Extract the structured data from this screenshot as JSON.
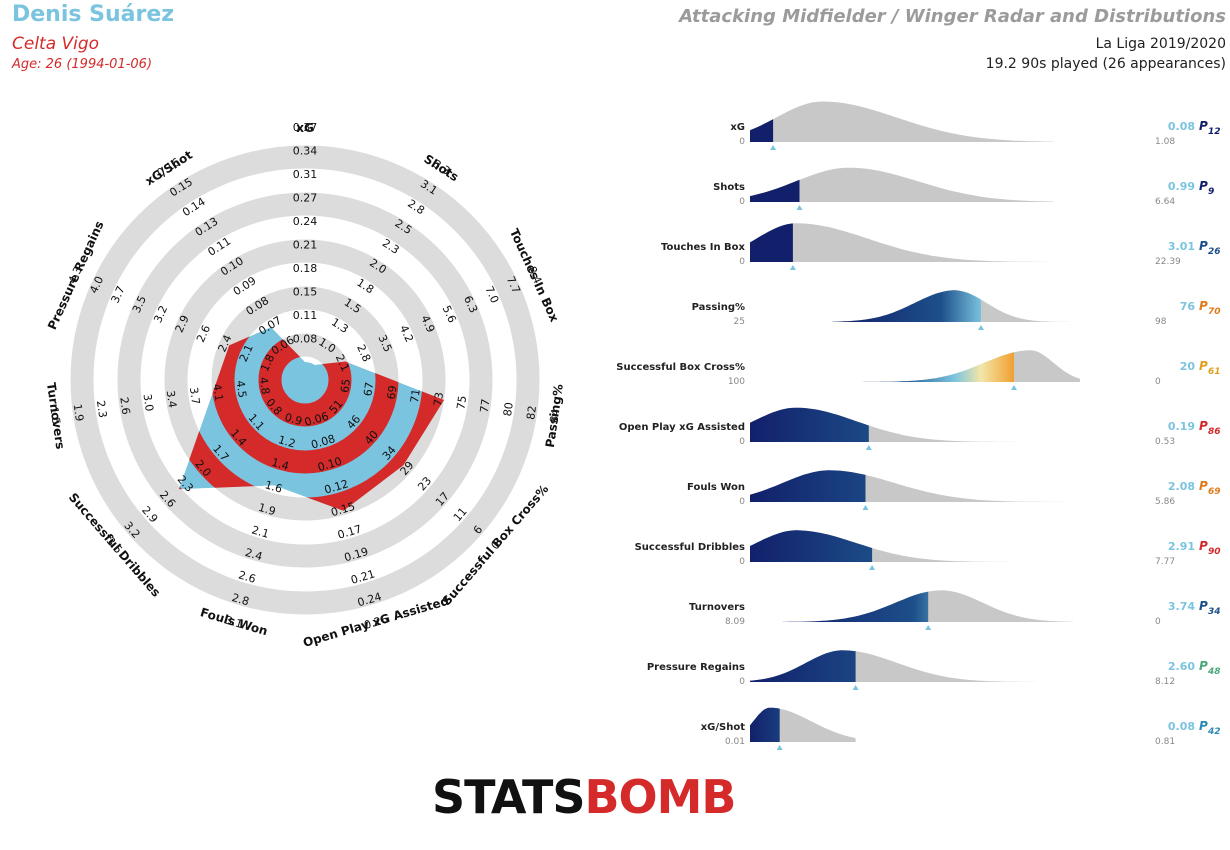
{
  "header": {
    "player_name": "Denis Suárez",
    "team": "Celta Vigo",
    "age": "Age: 26 (1994-01-06)",
    "title": "Attacking Midfielder / Winger Radar and Distributions",
    "competition": "La Liga 2019/2020",
    "minutes": "19.2 90s played (26 appearances)"
  },
  "logo": {
    "stats": "STATS",
    "bomb": "BOMB"
  },
  "colors": {
    "ring": "#dcdcdc",
    "blue": "#7bc4df",
    "red": "#d42a2a",
    "navy": "#12206b",
    "grey": "#c8c8c8",
    "tri": "#7bc4df"
  },
  "chart_data": [
    {
      "type": "radar",
      "axes": [
        {
          "label": "xG",
          "ticks": [
            "0.08",
            "0.11",
            "0.15",
            "0.18",
            "0.21",
            "0.24",
            "0.27",
            "0.31",
            "0.34",
            "0.37"
          ],
          "value": 0.08,
          "fraction": 0.0
        },
        {
          "label": "Shots",
          "ticks": [
            "1.0",
            "1.3",
            "1.5",
            "1.8",
            "2.0",
            "2.3",
            "2.5",
            "2.8",
            "3.1",
            "3.3"
          ],
          "value": 0.99,
          "fraction": 0.0
        },
        {
          "label": "Touches In Box",
          "ticks": [
            "2.1",
            "2.8",
            "3.5",
            "4.2",
            "4.9",
            "5.6",
            "6.3",
            "7.0",
            "7.7",
            "8.4"
          ],
          "value": 3.01,
          "fraction": 0.13
        },
        {
          "label": "Passing%",
          "ticks": [
            "65",
            "67",
            "69",
            "71",
            "73",
            "75",
            "77",
            "80",
            "82",
            "84"
          ],
          "value": 76,
          "fraction": 0.6
        },
        {
          "label": "Successful Box Cross%",
          "ticks": [
            "51",
            "46",
            "40",
            "34",
            "29",
            "23",
            "17",
            "11",
            "6",
            "0"
          ],
          "value": 20,
          "fraction": 0.55
        },
        {
          "label": "Open Play xG Assisted",
          "ticks": [
            "0.06",
            "0.08",
            "0.10",
            "0.12",
            "0.15",
            "0.17",
            "0.19",
            "0.21",
            "0.24",
            "0.26"
          ],
          "value": 0.19,
          "fraction": 0.58
        },
        {
          "label": "Fouls Won",
          "ticks": [
            "0.9",
            "1.2",
            "1.4",
            "1.6",
            "1.9",
            "2.1",
            "2.4",
            "2.6",
            "2.8",
            "3.1"
          ],
          "value": 2.08,
          "fraction": 0.45
        },
        {
          "label": "Successful Dribbles",
          "ticks": [
            "0.8",
            "1.1",
            "1.4",
            "1.7",
            "2.0",
            "2.3",
            "2.6",
            "2.9",
            "3.2",
            "3.5"
          ],
          "value": 2.91,
          "fraction": 0.73
        },
        {
          "label": "Turnovers",
          "ticks": [
            "4.8",
            "4.5",
            "4.1",
            "3.7",
            "3.4",
            "3.0",
            "2.6",
            "2.3",
            "1.9",
            "1.5"
          ],
          "value": 3.74,
          "fraction": 0.37
        },
        {
          "label": "Pressure Regains",
          "ticks": [
            "1.8",
            "2.1",
            "2.4",
            "2.6",
            "2.9",
            "3.2",
            "3.5",
            "3.7",
            "4.0",
            "4.3"
          ],
          "value": 2.6,
          "fraction": 0.32
        },
        {
          "label": "xG/Shot",
          "ticks": [
            "0.06",
            "0.07",
            "0.08",
            "0.09",
            "0.10",
            "0.11",
            "0.13",
            "0.14",
            "0.15",
            "0.16"
          ],
          "value": 0.08,
          "fraction": 0.22
        }
      ]
    },
    {
      "type": "area",
      "distributions": [
        {
          "label": "xG",
          "min": "0",
          "max": "1.08",
          "value": "0.08",
          "percentile": "12",
          "pcolor": "#12206b",
          "marker_fraction": 0.07,
          "peak": 0.22,
          "sigma": 0.14,
          "skew": 1.6,
          "height": 0.92,
          "start": 0.0,
          "end": 0.92,
          "gradient": false
        },
        {
          "label": "Shots",
          "min": "0",
          "max": "6.64",
          "value": "0.99",
          "percentile": "9",
          "pcolor": "#12206b",
          "marker_fraction": 0.15,
          "peak": 0.3,
          "sigma": 0.16,
          "skew": 1.3,
          "height": 0.78,
          "start": 0.0,
          "end": 0.92,
          "gradient": false
        },
        {
          "label": "Touches In Box",
          "min": "0",
          "max": "22.39",
          "value": "3.01",
          "percentile": "26",
          "pcolor": "#1d4f8a",
          "marker_fraction": 0.13,
          "peak": 0.14,
          "sigma": 0.12,
          "skew": 1.8,
          "height": 0.88,
          "start": 0.0,
          "end": 0.9,
          "gradient": false
        },
        {
          "label": "Passing%",
          "min": "25",
          "max": "98",
          "value": "76",
          "percentile": "70",
          "pcolor": "#e07b1c",
          "marker_fraction": 0.7,
          "peak": 0.62,
          "sigma": 0.12,
          "skew": 0.8,
          "height": 0.72,
          "start": 0.25,
          "end": 0.98,
          "gradient": true
        },
        {
          "label": "Successful Box Cross%",
          "min": "100",
          "max": "0",
          "value": "20",
          "percentile": "61",
          "pcolor": "#e0a020",
          "marker_fraction": 0.8,
          "peak": 0.85,
          "sigma": 0.14,
          "skew": 0.5,
          "height": 0.72,
          "start": 0.0,
          "end": 1.0,
          "gradient": true
        },
        {
          "label": "Open Play xG Assisted",
          "min": "0",
          "max": "0.53",
          "value": "0.19",
          "percentile": "86",
          "pcolor": "#d42a2a",
          "marker_fraction": 0.36,
          "peak": 0.14,
          "sigma": 0.13,
          "skew": 1.4,
          "height": 0.78,
          "start": 0.0,
          "end": 0.92,
          "gradient": true
        },
        {
          "label": "Fouls Won",
          "min": "0",
          "max": "5.86",
          "value": "2.08",
          "percentile": "69",
          "pcolor": "#e07b1c",
          "marker_fraction": 0.35,
          "peak": 0.24,
          "sigma": 0.14,
          "skew": 1.4,
          "height": 0.72,
          "start": 0.0,
          "end": 1.0,
          "gradient": true
        },
        {
          "label": "Successful Dribbles",
          "min": "0",
          "max": "7.77",
          "value": "2.91",
          "percentile": "90",
          "pcolor": "#d42a2a",
          "marker_fraction": 0.37,
          "peak": 0.14,
          "sigma": 0.12,
          "skew": 1.5,
          "height": 0.72,
          "start": 0.0,
          "end": 0.9,
          "gradient": true
        },
        {
          "label": "Turnovers",
          "min": "8.09",
          "max": "0",
          "value": "3.74",
          "percentile": "34",
          "pcolor": "#1d4f8a",
          "marker_fraction": 0.54,
          "peak": 0.58,
          "sigma": 0.14,
          "skew": 0.9,
          "height": 0.72,
          "start": 0.1,
          "end": 0.98,
          "gradient": true
        },
        {
          "label": "Pressure Regains",
          "min": "0",
          "max": "8.12",
          "value": "2.60",
          "percentile": "48",
          "pcolor": "#4aa87a",
          "marker_fraction": 0.32,
          "peak": 0.28,
          "sigma": 0.11,
          "skew": 1.5,
          "height": 0.72,
          "start": 0.0,
          "end": 0.92,
          "gradient": true
        },
        {
          "label": "xG/Shot",
          "min": "0.01",
          "max": "0.81",
          "value": "0.08",
          "percentile": "42",
          "pcolor": "#2a8ab5",
          "marker_fraction": 0.09,
          "peak": 0.06,
          "sigma": 0.05,
          "skew": 2.5,
          "height": 0.78,
          "start": 0.0,
          "end": 0.32,
          "gradient": true
        }
      ]
    }
  ]
}
